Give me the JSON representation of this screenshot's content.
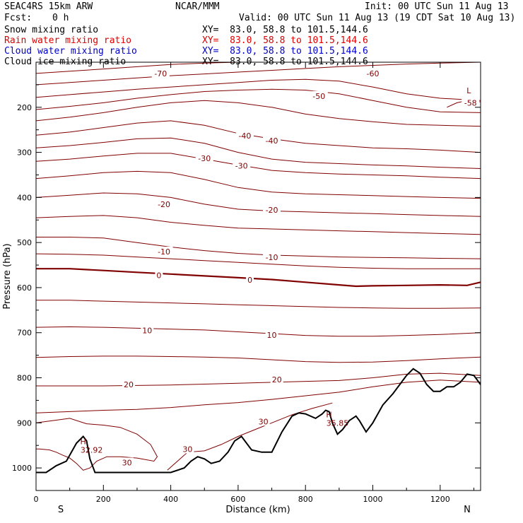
{
  "header": {
    "model": "SEAC4RS 15km ARW",
    "org": "NCAR/MMM",
    "init": "Init: 00 UTC Sun 11 Aug 13",
    "fcst_label": "Fcst:",
    "fcst_value": "0 h",
    "valid": "Valid: 00 UTC Sun 11 Aug 13 (19 CDT Sat 10 Aug 13)"
  },
  "fields": [
    {
      "name": "Snow mixing ratio",
      "xy": "XY=  83.0, 58.8 to 101.5,144.6",
      "color": "#000000"
    },
    {
      "name": "Rain water mixing ratio",
      "xy": "XY=  83.0, 58.8 to 101.5,144.6",
      "color": "#e00000"
    },
    {
      "name": "Cloud water mixing ratio",
      "xy": "XY=  83.0, 58.8 to 101.5,144.6",
      "color": "#0000cc"
    },
    {
      "name": "Cloud ice mixing ratio",
      "xy": "XY=  83.0, 58.8 to 101.5,144.6",
      "color": "#000000"
    }
  ],
  "chart_data": {
    "type": "line",
    "xlabel": "Distance (km)",
    "ylabel": "Pressure (hPa)",
    "xlim": [
      0,
      1320
    ],
    "ylim": [
      1050,
      100
    ],
    "x_ticks": [
      0,
      200,
      400,
      600,
      800,
      1000,
      1200
    ],
    "y_ticks": [
      200,
      300,
      400,
      500,
      600,
      700,
      800,
      900,
      1000
    ],
    "y_tick_labels": [
      "200",
      "300",
      "400",
      "500",
      "600",
      "700",
      "800",
      "900",
      "1000"
    ],
    "left_end_label": "S",
    "right_end_label": "N",
    "contour_color": "#800000",
    "contour_labels": [
      {
        "text": "-70",
        "x": 370,
        "p": 125
      },
      {
        "text": "-60",
        "x": 1000,
        "p": 125
      },
      {
        "text": "-58",
        "x": 1290,
        "p": 190
      },
      {
        "text": "-50",
        "x": 840,
        "p": 175
      },
      {
        "text": "-40",
        "x": 620,
        "p": 263
      },
      {
        "text": "-40",
        "x": 700,
        "p": 274
      },
      {
        "text": "-30",
        "x": 500,
        "p": 313
      },
      {
        "text": "-30",
        "x": 610,
        "p": 330
      },
      {
        "text": "-20",
        "x": 380,
        "p": 415
      },
      {
        "text": "-20",
        "x": 700,
        "p": 428
      },
      {
        "text": "-10",
        "x": 380,
        "p": 520
      },
      {
        "text": "-10",
        "x": 700,
        "p": 533
      },
      {
        "text": "0",
        "x": 365,
        "p": 573
      },
      {
        "text": "0",
        "x": 635,
        "p": 583
      },
      {
        "text": "10",
        "x": 330,
        "p": 695
      },
      {
        "text": "10",
        "x": 700,
        "p": 705
      },
      {
        "text": "20",
        "x": 275,
        "p": 815
      },
      {
        "text": "20",
        "x": 715,
        "p": 804
      },
      {
        "text": "30",
        "x": 270,
        "p": 988
      },
      {
        "text": "30",
        "x": 450,
        "p": 958
      },
      {
        "text": "30",
        "x": 675,
        "p": 897
      }
    ],
    "highs": [
      {
        "symbol": "H",
        "value": "32.92",
        "x": 165,
        "p": 960
      },
      {
        "symbol": "H",
        "value": "35.85",
        "x": 895,
        "p": 900
      }
    ],
    "lows": [
      {
        "symbol": "L",
        "value": "-58",
        "x": 1285,
        "p": 175
      }
    ],
    "contours": [
      {
        "level": -70,
        "x": [
          0,
          100,
          200,
          300,
          400,
          500,
          600,
          700,
          800,
          900,
          1000,
          1100,
          1200,
          1320
        ],
        "p": [
          125,
          120,
          115,
          110,
          105,
          102,
          100,
          100,
          100,
          100,
          100,
          100,
          100,
          100
        ]
      },
      {
        "level": -60,
        "x": [
          0,
          100,
          200,
          300,
          400,
          500,
          600,
          700,
          800,
          900,
          1000,
          1100,
          1200,
          1320
        ],
        "p": [
          150,
          145,
          140,
          135,
          130,
          126,
          122,
          118,
          114,
          110,
          107,
          104,
          102,
          100
        ]
      },
      {
        "level": -58,
        "x": [
          1220,
          1250,
          1280,
          1320
        ],
        "p": [
          200,
          190,
          185,
          188
        ]
      },
      {
        "level": -55,
        "x": [
          0,
          100,
          200,
          300,
          400,
          500,
          600,
          700,
          800,
          900,
          1000,
          1100,
          1200,
          1320
        ],
        "p": [
          178,
          172,
          166,
          160,
          155,
          150,
          145,
          140,
          138,
          142,
          155,
          170,
          180,
          185
        ]
      },
      {
        "level": -50,
        "x": [
          0,
          100,
          200,
          300,
          400,
          500,
          600,
          700,
          800,
          900,
          1000,
          1100,
          1200,
          1320
        ],
        "p": [
          205,
          198,
          190,
          180,
          172,
          165,
          162,
          160,
          162,
          170,
          185,
          200,
          210,
          212
        ]
      },
      {
        "level": -45,
        "x": [
          0,
          100,
          200,
          300,
          400,
          500,
          600,
          700,
          800,
          900,
          1000,
          1100,
          1200,
          1320
        ],
        "p": [
          230,
          222,
          212,
          200,
          190,
          185,
          190,
          200,
          215,
          225,
          232,
          238,
          240,
          242
        ]
      },
      {
        "level": -40,
        "x": [
          0,
          100,
          200,
          300,
          400,
          500,
          600,
          700,
          800,
          900,
          1000,
          1100,
          1200,
          1320
        ],
        "p": [
          262,
          255,
          245,
          235,
          230,
          240,
          258,
          270,
          280,
          285,
          290,
          292,
          295,
          300
        ]
      },
      {
        "level": -35,
        "x": [
          0,
          100,
          200,
          300,
          400,
          500,
          600,
          700,
          800,
          900,
          1000,
          1100,
          1200,
          1320
        ],
        "p": [
          290,
          285,
          278,
          270,
          268,
          280,
          300,
          315,
          322,
          325,
          328,
          330,
          333,
          336
        ]
      },
      {
        "level": -30,
        "x": [
          0,
          100,
          200,
          300,
          400,
          500,
          600,
          700,
          800,
          900,
          1000,
          1100,
          1200,
          1320
        ],
        "p": [
          320,
          315,
          308,
          302,
          302,
          315,
          328,
          340,
          345,
          348,
          350,
          352,
          355,
          358
        ]
      },
      {
        "level": -25,
        "x": [
          0,
          100,
          200,
          300,
          400,
          500,
          600,
          700,
          800,
          900,
          1000,
          1100,
          1200,
          1320
        ],
        "p": [
          358,
          352,
          345,
          342,
          345,
          360,
          378,
          388,
          392,
          394,
          396,
          398,
          400,
          402
        ]
      },
      {
        "level": -20,
        "x": [
          0,
          100,
          200,
          300,
          400,
          500,
          600,
          700,
          800,
          900,
          1000,
          1100,
          1200,
          1320
        ],
        "p": [
          400,
          395,
          390,
          392,
          400,
          415,
          426,
          430,
          432,
          434,
          436,
          438,
          440,
          442
        ]
      },
      {
        "level": -15,
        "x": [
          0,
          100,
          200,
          300,
          400,
          500,
          600,
          700,
          800,
          900,
          1000,
          1100,
          1200,
          1320
        ],
        "p": [
          445,
          442,
          440,
          445,
          455,
          462,
          468,
          470,
          472,
          474,
          476,
          478,
          480,
          482
        ]
      },
      {
        "level": -10,
        "x": [
          0,
          100,
          200,
          300,
          400,
          500,
          600,
          700,
          800,
          900,
          1000,
          1100,
          1200,
          1320
        ],
        "p": [
          488,
          488,
          490,
          500,
          510,
          518,
          524,
          528,
          530,
          532,
          533,
          534,
          535,
          536
        ]
      },
      {
        "level": -5,
        "x": [
          0,
          100,
          200,
          300,
          400,
          500,
          600,
          700,
          800,
          900,
          1000,
          1100,
          1200,
          1320
        ],
        "p": [
          525,
          526,
          528,
          532,
          536,
          540,
          544,
          548,
          552,
          555,
          557,
          558,
          558,
          558
        ]
      },
      {
        "level": 0,
        "thick": true,
        "x": [
          0,
          100,
          200,
          300,
          400,
          500,
          600,
          700,
          800,
          900,
          950,
          1000,
          1100,
          1200,
          1280,
          1320
        ],
        "p": [
          558,
          558,
          562,
          566,
          570,
          574,
          578,
          582,
          588,
          594,
          597,
          596,
          595,
          594,
          595,
          588
        ]
      },
      {
        "level": 5,
        "x": [
          0,
          100,
          200,
          300,
          400,
          500,
          600,
          700,
          800,
          900,
          1000,
          1100,
          1200,
          1320
        ],
        "p": [
          628,
          628,
          630,
          632,
          634,
          636,
          638,
          640,
          642,
          644,
          645,
          646,
          646,
          645
        ]
      },
      {
        "level": 10,
        "x": [
          0,
          100,
          200,
          300,
          400,
          500,
          600,
          700,
          800,
          900,
          1000,
          1100,
          1200,
          1320
        ],
        "p": [
          688,
          687,
          688,
          690,
          692,
          694,
          698,
          702,
          706,
          708,
          708,
          706,
          704,
          700
        ]
      },
      {
        "level": 15,
        "x": [
          0,
          100,
          200,
          300,
          400,
          500,
          600,
          700,
          800,
          900,
          1000,
          1100,
          1200,
          1320
        ],
        "p": [
          755,
          753,
          752,
          752,
          753,
          754,
          756,
          760,
          764,
          766,
          765,
          762,
          758,
          754
        ]
      },
      {
        "level": 20,
        "x": [
          0,
          100,
          200,
          300,
          400,
          500,
          600,
          700,
          800,
          900,
          1000,
          1100,
          1200,
          1320
        ],
        "p": [
          818,
          818,
          818,
          817,
          816,
          814,
          812,
          810,
          808,
          806,
          800,
          792,
          790,
          795
        ]
      },
      {
        "level": 25,
        "x": [
          0,
          100,
          200,
          300,
          400,
          500,
          600,
          700,
          800,
          900,
          1000,
          1100,
          1200,
          1320
        ],
        "p": [
          878,
          875,
          872,
          870,
          866,
          860,
          855,
          848,
          840,
          832,
          820,
          810,
          805,
          810
        ]
      },
      {
        "level": 30,
        "x": [
          0,
          50,
          100,
          150,
          200,
          250,
          300,
          340,
          360,
          350,
          300,
          250,
          210,
          180,
          160,
          140,
          120,
          100,
          80,
          60,
          40,
          10,
          0
        ],
        "p": [
          900,
          895,
          890,
          902,
          905,
          910,
          925,
          948,
          975,
          985,
          978,
          975,
          975,
          985,
          1000,
          1005,
          990,
          978,
          972,
          965,
          960,
          958,
          958
        ]
      },
      {
        "level": 30,
        "x": [
          390,
          450,
          500,
          550,
          600,
          650,
          700,
          760,
          820,
          880
        ],
        "p": [
          1005,
          965,
          962,
          948,
          930,
          915,
          900,
          882,
          868,
          856
        ]
      }
    ],
    "terrain": {
      "color": "#000000",
      "x": [
        0,
        30,
        60,
        90,
        120,
        140,
        150,
        160,
        175,
        200,
        300,
        400,
        440,
        460,
        480,
        500,
        520,
        545,
        570,
        590,
        610,
        640,
        670,
        700,
        730,
        760,
        780,
        800,
        830,
        850,
        860,
        870,
        880,
        895,
        910,
        930,
        950,
        960,
        980,
        1000,
        1030,
        1060,
        1080,
        1100,
        1120,
        1140,
        1160,
        1180,
        1200,
        1220,
        1240,
        1260,
        1280,
        1300,
        1320
      ],
      "p": [
        1010,
        1010,
        995,
        985,
        945,
        930,
        940,
        980,
        1010,
        1010,
        1010,
        1010,
        1000,
        985,
        975,
        980,
        990,
        985,
        965,
        940,
        930,
        960,
        965,
        965,
        920,
        885,
        878,
        880,
        890,
        880,
        872,
        875,
        900,
        925,
        915,
        895,
        885,
        895,
        920,
        900,
        860,
        835,
        815,
        795,
        780,
        790,
        815,
        830,
        830,
        820,
        820,
        810,
        792,
        795,
        815
      ]
    }
  }
}
